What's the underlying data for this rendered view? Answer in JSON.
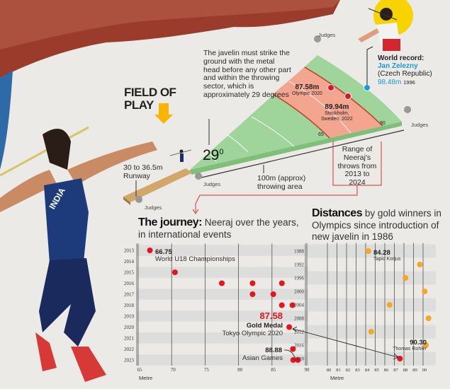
{
  "field": {
    "heading_line1": "FIELD OF",
    "heading_line2": "PLAY",
    "rule_text": "The javelin must strike the ground with the metal head before any other part and within the throwing sector, which is approximately 29 degrees",
    "angle_value": "29",
    "angle_unit": "0",
    "runway_label_line1": "30 to 36.5m",
    "runway_label_line2": "Runway",
    "throwing_area_line1": "100m (approx)",
    "throwing_area_line2": "throwing area",
    "range_label": "Range of Neeraj's throws from 2013 to 2024",
    "judges_label": "Judges",
    "arc_65": "65",
    "arc_90": "90",
    "mark1_value": "87.58m",
    "mark1_event": "Olympic 2020",
    "mark2_value": "89.94m",
    "mark2_event_line1": "Stockholm,",
    "mark2_event_line2": "Sweden, 2022",
    "world_record_title": "World record:",
    "world_record_name": "Jan Zelezny",
    "world_record_country": "(Czech Republic)",
    "world_record_value": "98.48m",
    "world_record_year": "1996",
    "jersey_text": "INDIA"
  },
  "colors": {
    "field_green": "#9fd49a",
    "range_salmon": "#f4a58f",
    "neeraj_red": "#e5141e",
    "gold_orange": "#f5a623",
    "record_blue": "#1a9ad6",
    "arrow_yellow": "#f7b500"
  },
  "chart_data": [
    {
      "type": "scatter",
      "title_bold": "The journey:",
      "title_rest": " Neeraj over the years, in international events",
      "xlabel": "Metre",
      "xlim": [
        65,
        90
      ],
      "xticks": [
        65,
        70,
        75,
        80,
        85,
        90
      ],
      "grid": true,
      "categories": [
        "2013",
        "2014",
        "2015",
        "2016",
        "2017",
        "2018",
        "2019",
        "2020",
        "2021",
        "2022",
        "2023"
      ],
      "points": [
        {
          "year": "2013",
          "value": 66.75
        },
        {
          "year": "2015",
          "value": 70.5
        },
        {
          "year": "2016",
          "value": 77.5
        },
        {
          "year": "2016",
          "value": 82.1
        },
        {
          "year": "2016",
          "value": 86.48
        },
        {
          "year": "2017",
          "value": 82.1
        },
        {
          "year": "2017",
          "value": 85.2
        },
        {
          "year": "2018",
          "value": 86.47
        },
        {
          "year": "2018",
          "value": 88.06
        },
        {
          "year": "2020",
          "value": 87.58
        },
        {
          "year": "2022",
          "value": 88.13
        },
        {
          "year": "2023",
          "value": 88.17
        },
        {
          "year": "2023",
          "value": 88.88
        }
      ],
      "annotations": [
        {
          "value": "66.75",
          "label": "World U18 Championships"
        },
        {
          "value": "87.58",
          "label_bold": "Gold Medal",
          "label": "Tokyo Olympic 2020"
        },
        {
          "value": "88.88",
          "label": "Asian Games"
        }
      ]
    },
    {
      "type": "scatter",
      "title_bold": "Distances",
      "title_rest": " by gold winners in Olympics since introduction of new javelin in 1986",
      "xlabel": "Metre",
      "xlim": [
        80,
        90
      ],
      "xticks": [
        80,
        81,
        82,
        83,
        84,
        85,
        86,
        87,
        88,
        89,
        90
      ],
      "grid": true,
      "categories": [
        "1988",
        "1992",
        "1996",
        "2000",
        "2004",
        "2008",
        "2012",
        "2016",
        "2020"
      ],
      "points": [
        {
          "year": "1988",
          "value": 84.28
        },
        {
          "year": "1992",
          "value": 89.66
        },
        {
          "year": "1996",
          "value": 88.16
        },
        {
          "year": "2000",
          "value": 90.17
        },
        {
          "year": "2004",
          "value": 86.5
        },
        {
          "year": "2008",
          "value": 90.57
        },
        {
          "year": "2012",
          "value": 84.58
        },
        {
          "year": "2016",
          "value": 90.3
        },
        {
          "year": "2020",
          "value": 87.58,
          "highlight": true
        }
      ],
      "annotations": [
        {
          "value": "84.28",
          "label": "Tapio Korjus"
        },
        {
          "value": "90.30",
          "label": "Thomas Rohler"
        }
      ]
    }
  ]
}
